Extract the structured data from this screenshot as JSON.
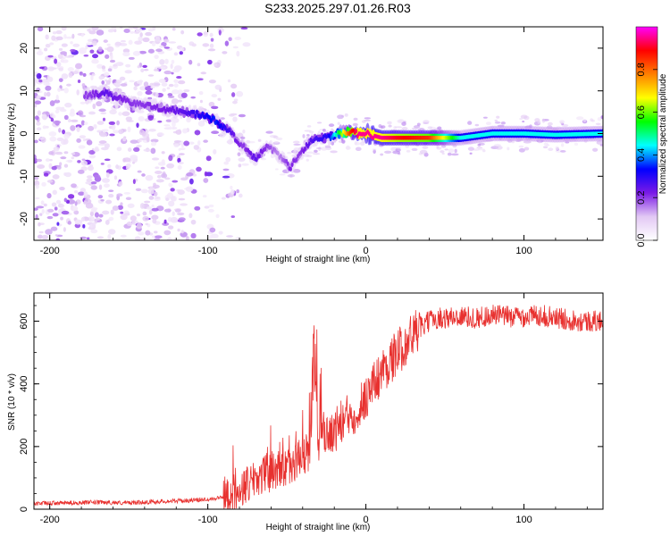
{
  "figure_title": "S233.2025.297.01.26.R03",
  "chart_data": [
    {
      "type": "heatmap",
      "id": "spectrogram",
      "xlabel": "Height of straight line (km)",
      "ylabel": "Frequency (Hz)",
      "xlim": [
        -210,
        150
      ],
      "ylim": [
        -25,
        25
      ],
      "xticks": [
        -200,
        -100,
        0,
        100
      ],
      "yticks": [
        -20,
        -10,
        0,
        10,
        20
      ],
      "colorbar": {
        "label": "Normalized spectral amplitude",
        "range": [
          0,
          1
        ],
        "ticks": [
          0.0,
          0.2,
          0.4,
          0.6,
          0.8
        ],
        "stops": [
          "#ffffff",
          "#e2c8f4",
          "#7a1ae6",
          "#0000ff",
          "#00ffff",
          "#00ff00",
          "#ffff00",
          "#ff7f00",
          "#ff0000",
          "#ff00ff"
        ]
      },
      "ridge": {
        "x": [
          -175,
          -165,
          -155,
          -145,
          -130,
          -115,
          -105,
          -95,
          -85,
          -78,
          -70,
          -62,
          -55,
          -48,
          -42,
          -36,
          -30,
          -24,
          -18,
          -10,
          -5,
          0,
          10,
          20,
          40,
          60,
          80,
          100,
          120,
          150
        ],
        "y": [
          9,
          9.5,
          8,
          7,
          6,
          5,
          4.5,
          3,
          0,
          -3,
          -6,
          -3,
          -5,
          -8,
          -5,
          -2,
          -1,
          -1,
          0,
          0.5,
          0,
          0,
          -1,
          -1,
          -1,
          -1,
          0,
          0,
          -0.3,
          0
        ],
        "amplitude": [
          0.2,
          0.25,
          0.22,
          0.2,
          0.22,
          0.25,
          0.3,
          0.35,
          0.25,
          0.2,
          0.25,
          0.2,
          0.15,
          0.22,
          0.2,
          0.25,
          0.28,
          0.3,
          0.5,
          0.85,
          0.95,
          0.95,
          0.95,
          0.9,
          0.85,
          0.45,
          0.45,
          0.45,
          0.45,
          0.45
        ]
      }
    },
    {
      "type": "line",
      "id": "snr",
      "xlabel": "Height of straight line (km)",
      "ylabel": "SNR (10 * v/v)",
      "xlim": [
        -210,
        150
      ],
      "ylim": [
        0,
        690
      ],
      "xticks": [
        -200,
        -100,
        0,
        100
      ],
      "yticks": [
        0,
        200,
        400,
        600
      ],
      "color": "#e8312f",
      "series": {
        "name": "SNR",
        "x": [
          -210,
          -190,
          -170,
          -150,
          -130,
          -110,
          -95,
          -85,
          -80,
          -75,
          -70,
          -65,
          -60,
          -55,
          -50,
          -45,
          -40,
          -35,
          -32,
          -30,
          -25,
          -20,
          -15,
          -10,
          -5,
          0,
          5,
          10,
          15,
          20,
          25,
          30,
          35,
          40,
          45,
          50,
          60,
          70,
          80,
          90,
          100,
          110,
          120,
          130,
          140,
          150
        ],
        "y": [
          18,
          20,
          22,
          20,
          25,
          28,
          35,
          45,
          60,
          80,
          100,
          110,
          120,
          130,
          135,
          150,
          170,
          180,
          380,
          200,
          230,
          250,
          280,
          300,
          320,
          360,
          400,
          440,
          470,
          500,
          530,
          560,
          580,
          600,
          610,
          610,
          615,
          610,
          620,
          615,
          615,
          620,
          610,
          605,
          600,
          600
        ]
      }
    }
  ]
}
